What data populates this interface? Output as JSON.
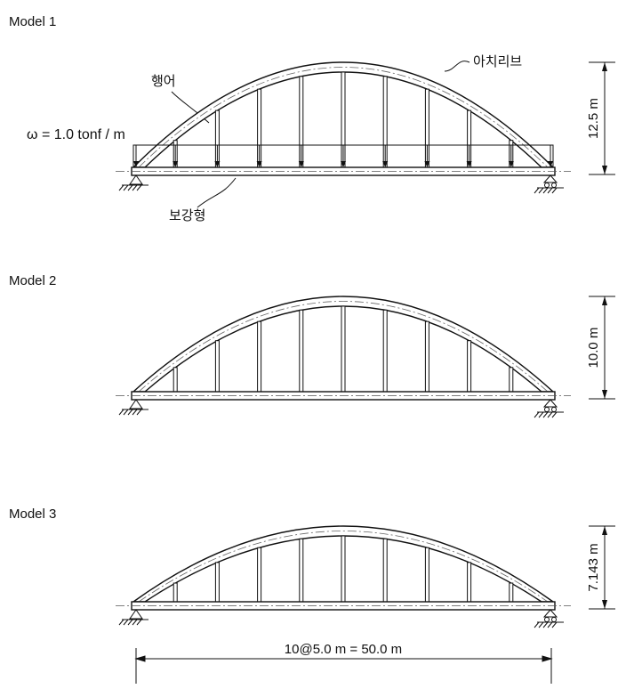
{
  "models": [
    {
      "title": "Model 1",
      "rise_label": "12.5 m"
    },
    {
      "title": "Model 2",
      "rise_label": "10.0 m"
    },
    {
      "title": "Model 3",
      "rise_label": "7.143 m"
    }
  ],
  "load_label": "ω = 1.0 tonf / m",
  "labels": {
    "hanger": "행어",
    "arch_rib": "아치리브",
    "girder": "보강형"
  },
  "span_label": "10@5.0 m = 50.0 m"
}
